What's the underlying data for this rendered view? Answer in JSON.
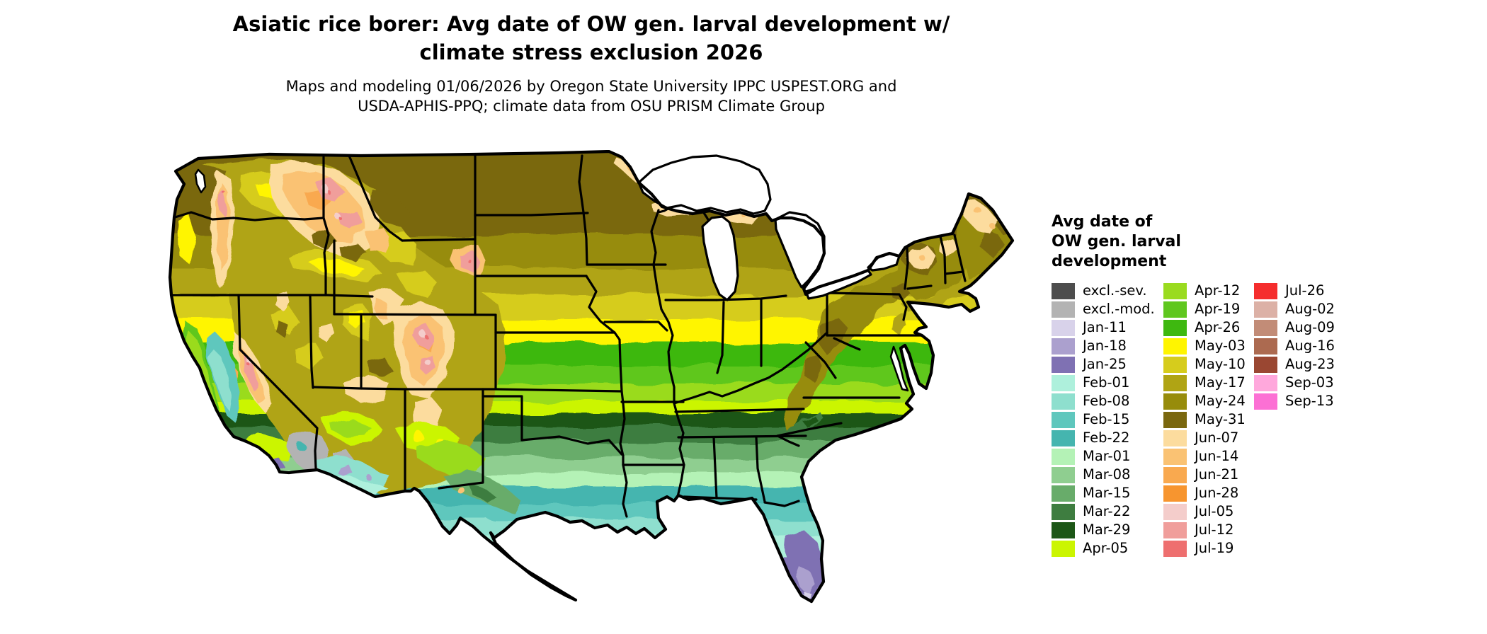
{
  "header": {
    "title_line1": "Asiatic rice borer: Avg date of OW gen. larval development w/",
    "title_line2": "climate stress exclusion 2026",
    "subtitle_line1": "Maps and modeling 01/06/2026 by Oregon State University IPPC USPEST.ORG and",
    "subtitle_line2": "USDA-APHIS-PPQ; climate data from OSU PRISM Climate Group"
  },
  "legend": {
    "title_lines": [
      "Avg date of",
      "OW gen. larval",
      "development"
    ],
    "columns": [
      {
        "entries": [
          {
            "label": "excl.-sev.",
            "color": "#4D4D4D"
          },
          {
            "label": "excl.-mod.",
            "color": "#B3B3B3"
          },
          {
            "label": "Jan-11",
            "color": "#D8D2EA"
          },
          {
            "label": "Jan-18",
            "color": "#ABA0CE"
          },
          {
            "label": "Jan-25",
            "color": "#7F71B3"
          },
          {
            "label": "Feb-01",
            "color": "#AEF0DC"
          },
          {
            "label": "Feb-08",
            "color": "#8EDFCE"
          },
          {
            "label": "Feb-15",
            "color": "#5FC7BD"
          },
          {
            "label": "Feb-22",
            "color": "#45B5AF"
          },
          {
            "label": "Mar-01",
            "color": "#B4F2B6"
          },
          {
            "label": "Mar-08",
            "color": "#8FCE90"
          },
          {
            "label": "Mar-15",
            "color": "#68AC6A"
          },
          {
            "label": "Mar-22",
            "color": "#3E7D40"
          },
          {
            "label": "Mar-29",
            "color": "#1D5717"
          },
          {
            "label": "Apr-05",
            "color": "#CBF501"
          }
        ]
      },
      {
        "entries": [
          {
            "label": "Apr-12",
            "color": "#9ADB1F"
          },
          {
            "label": "Apr-19",
            "color": "#5FC71E"
          },
          {
            "label": "Apr-26",
            "color": "#3EB810"
          },
          {
            "label": "May-03",
            "color": "#FFF500"
          },
          {
            "label": "May-10",
            "color": "#D6CC1C"
          },
          {
            "label": "May-17",
            "color": "#B0A414"
          },
          {
            "label": "May-24",
            "color": "#978C0B"
          },
          {
            "label": "May-31",
            "color": "#7A670E"
          },
          {
            "label": "Jun-07",
            "color": "#FCDC9E"
          },
          {
            "label": "Jun-14",
            "color": "#FAC273"
          },
          {
            "label": "Jun-21",
            "color": "#F9A94F"
          },
          {
            "label": "Jun-28",
            "color": "#F7952F"
          },
          {
            "label": "Jul-05",
            "color": "#F4CDCB"
          },
          {
            "label": "Jul-12",
            "color": "#F09E9B"
          },
          {
            "label": "Jul-19",
            "color": "#EE6F6F"
          }
        ]
      },
      {
        "entries": [
          {
            "label": "Jul-26",
            "color": "#F52D2D"
          },
          {
            "label": "Aug-02",
            "color": "#DCB1A6"
          },
          {
            "label": "Aug-09",
            "color": "#C28C77"
          },
          {
            "label": "Aug-16",
            "color": "#AC6A50"
          },
          {
            "label": "Aug-23",
            "color": "#9A4732"
          },
          {
            "label": "Sep-03",
            "color": "#FFA8DC"
          },
          {
            "label": "Sep-13",
            "color": "#FC70D4"
          }
        ]
      }
    ]
  }
}
